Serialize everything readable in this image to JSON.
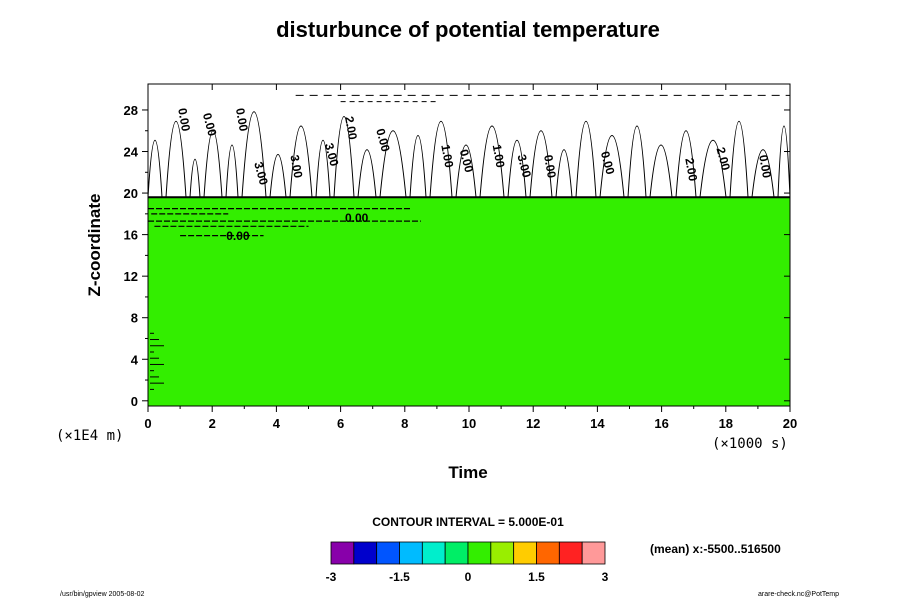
{
  "chart_data": {
    "type": "heatmap",
    "title": "disturbunce of potential temperature",
    "xlabel": "Time",
    "ylabel": "Z-coordinate",
    "x_unit": "(×1000 s)",
    "y_unit": "(×1E4 m)",
    "xlim": [
      0,
      20
    ],
    "ylim": [
      -0.5,
      30.5
    ],
    "x_ticks": [
      "0",
      "2",
      "4",
      "6",
      "8",
      "10",
      "12",
      "14",
      "16",
      "18",
      "20"
    ],
    "y_ticks": [
      "0",
      "4",
      "8",
      "12",
      "16",
      "20",
      "24",
      "28"
    ],
    "fill_value": 0,
    "fill_top": 19.6,
    "contour_labels": [
      {
        "text": "0.00",
        "x": 6.5,
        "y": 17.2
      },
      {
        "text": "0.00",
        "x": 2.8,
        "y": 15.5
      },
      {
        "text": "0.00",
        "x": 1.0,
        "y": 27.0
      },
      {
        "text": "0.00",
        "x": 1.8,
        "y": 26.5
      },
      {
        "text": "0.00",
        "x": 2.8,
        "y": 27.0
      },
      {
        "text": "3.00",
        "x": 3.4,
        "y": 21.8
      },
      {
        "text": "3.00",
        "x": 4.5,
        "y": 22.5
      },
      {
        "text": "3.00",
        "x": 5.6,
        "y": 23.6
      },
      {
        "text": "2.00",
        "x": 6.2,
        "y": 26.2
      },
      {
        "text": "0.00",
        "x": 7.2,
        "y": 25.0
      },
      {
        "text": "1.00",
        "x": 9.2,
        "y": 23.5
      },
      {
        "text": "0.00",
        "x": 9.8,
        "y": 23.0
      },
      {
        "text": "1.00",
        "x": 10.8,
        "y": 23.5
      },
      {
        "text": "3.00",
        "x": 11.6,
        "y": 22.5
      },
      {
        "text": "0.00",
        "x": 12.4,
        "y": 22.5
      },
      {
        "text": "0.00",
        "x": 14.2,
        "y": 22.8
      },
      {
        "text": "2.00",
        "x": 16.8,
        "y": 22.2
      },
      {
        "text": "2.00",
        "x": 17.8,
        "y": 23.2
      },
      {
        "text": "0.00",
        "x": 19.1,
        "y": 22.5
      }
    ],
    "colorbar": {
      "colors": [
        "#8800aa",
        "#0000cc",
        "#0055ff",
        "#00bbff",
        "#00eecc",
        "#00ee66",
        "#33ee00",
        "#99ee00",
        "#ffcc00",
        "#ff6600",
        "#ff2222",
        "#ff9999"
      ],
      "tick_labels": [
        "-3",
        "-1.5",
        "0",
        "1.5",
        "3"
      ],
      "min": -3,
      "max": 3
    },
    "fill_color": "#33ee00"
  },
  "contour_interval_text": "CONTOUR INTERVAL = 5.000E-01",
  "mean_text": "(mean) x:-5500..516500",
  "footer_left": "/usr/bin/gpview 2005-08-02",
  "footer_right": "arare-check.nc@PotTemp"
}
